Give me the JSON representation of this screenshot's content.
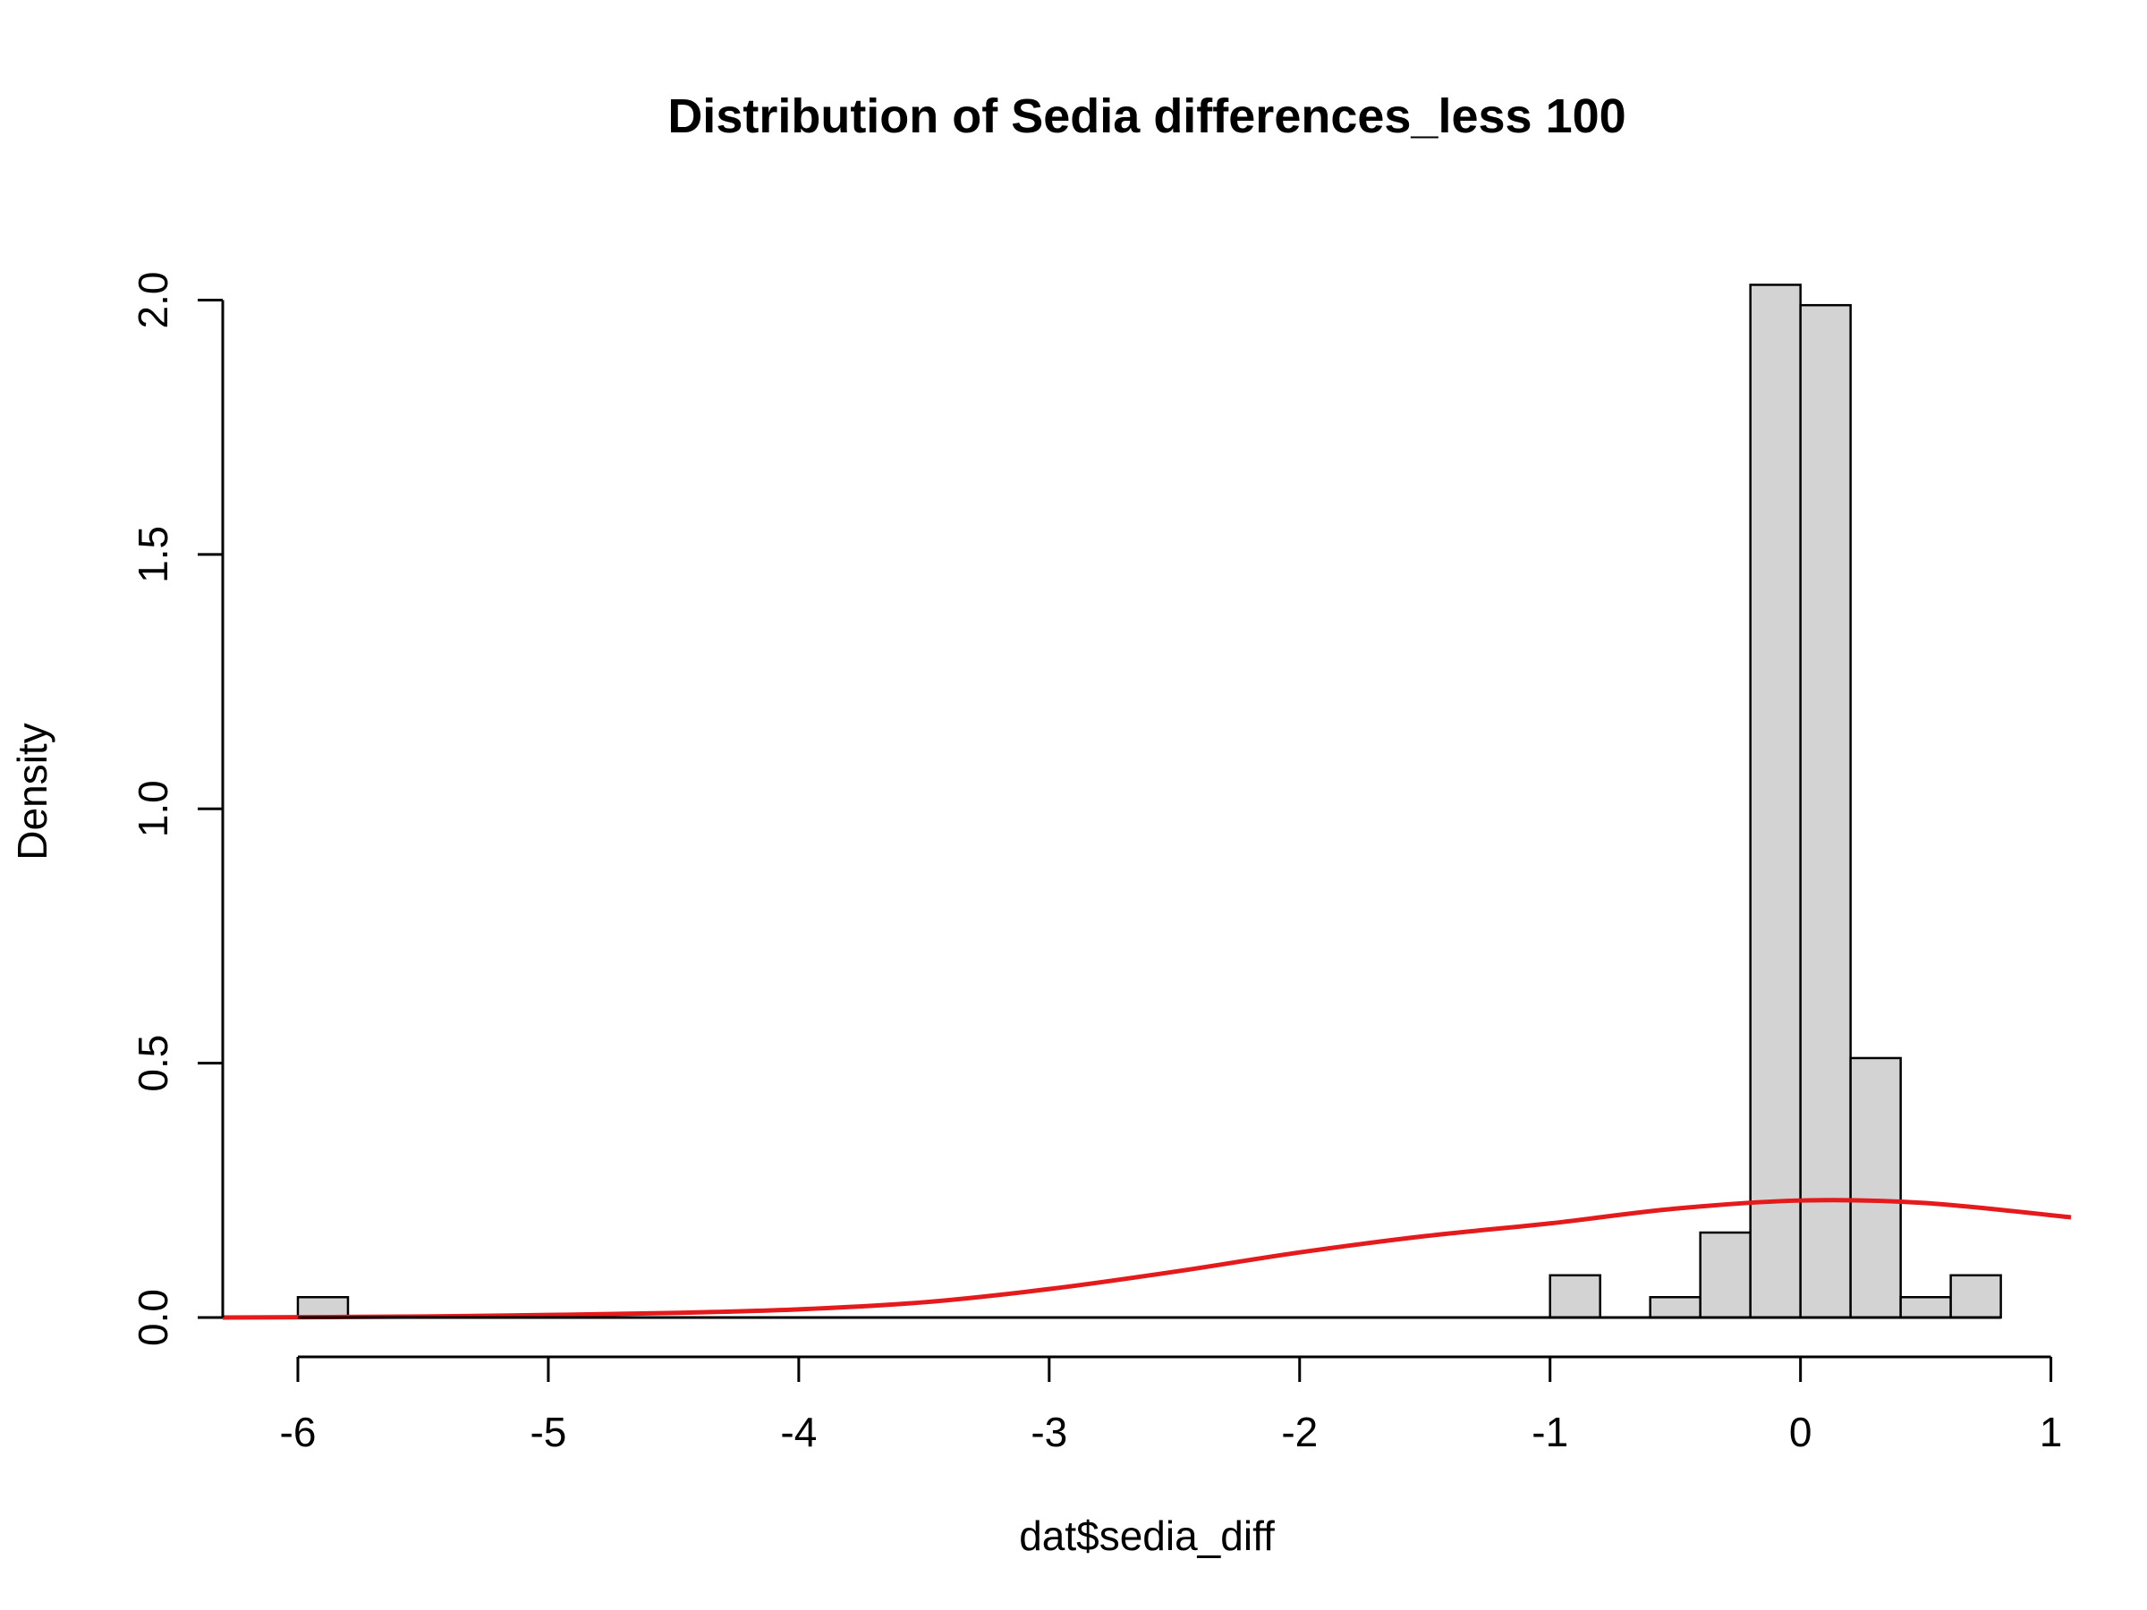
{
  "chart_data": {
    "type": "bar",
    "title": "Distribution of Sedia differences_less 100",
    "xlabel": "dat$sedia_diff",
    "ylabel": "Density",
    "xlim": [
      -6.3,
      1.08
    ],
    "ylim": [
      0,
      2.08
    ],
    "x_ticks": [
      -6,
      -5,
      -4,
      -3,
      -2,
      -1,
      0,
      1
    ],
    "x_tick_labels": [
      "-6",
      "-5",
      "-4",
      "-3",
      "-2",
      "-1",
      "0",
      "1"
    ],
    "y_ticks": [
      0,
      0.5,
      1,
      1.5,
      2
    ],
    "y_tick_labels": [
      "0.0",
      "0.5",
      "1.0",
      "1.5",
      "2.0"
    ],
    "bins": [
      {
        "x0": -6.0,
        "x1": -5.8,
        "density": 0.04
      },
      {
        "x0": -1.0,
        "x1": -0.8,
        "density": 0.083
      },
      {
        "x0": -0.6,
        "x1": -0.4,
        "density": 0.04
      },
      {
        "x0": -0.4,
        "x1": -0.2,
        "density": 0.167
      },
      {
        "x0": -0.2,
        "x1": 0.0,
        "density": 2.03
      },
      {
        "x0": 0.0,
        "x1": 0.2,
        "density": 1.99
      },
      {
        "x0": 0.2,
        "x1": 0.4,
        "density": 0.51
      },
      {
        "x0": 0.4,
        "x1": 0.6,
        "density": 0.04
      },
      {
        "x0": 0.6,
        "x1": 0.8,
        "density": 0.083
      }
    ],
    "bar_fill": "#d3d3d3",
    "bar_stroke": "#000000",
    "density_curve": {
      "color": "#e41a1c",
      "x": [
        -6.3,
        -5.5,
        -5.0,
        -4.5,
        -4.0,
        -3.5,
        -3.0,
        -2.5,
        -2.0,
        -1.5,
        -1.0,
        -0.5,
        0.0,
        0.5,
        1.08
      ],
      "y": [
        0.0,
        0.002,
        0.005,
        0.009,
        0.016,
        0.03,
        0.056,
        0.09,
        0.128,
        0.16,
        0.185,
        0.214,
        0.23,
        0.225,
        0.197
      ]
    }
  }
}
